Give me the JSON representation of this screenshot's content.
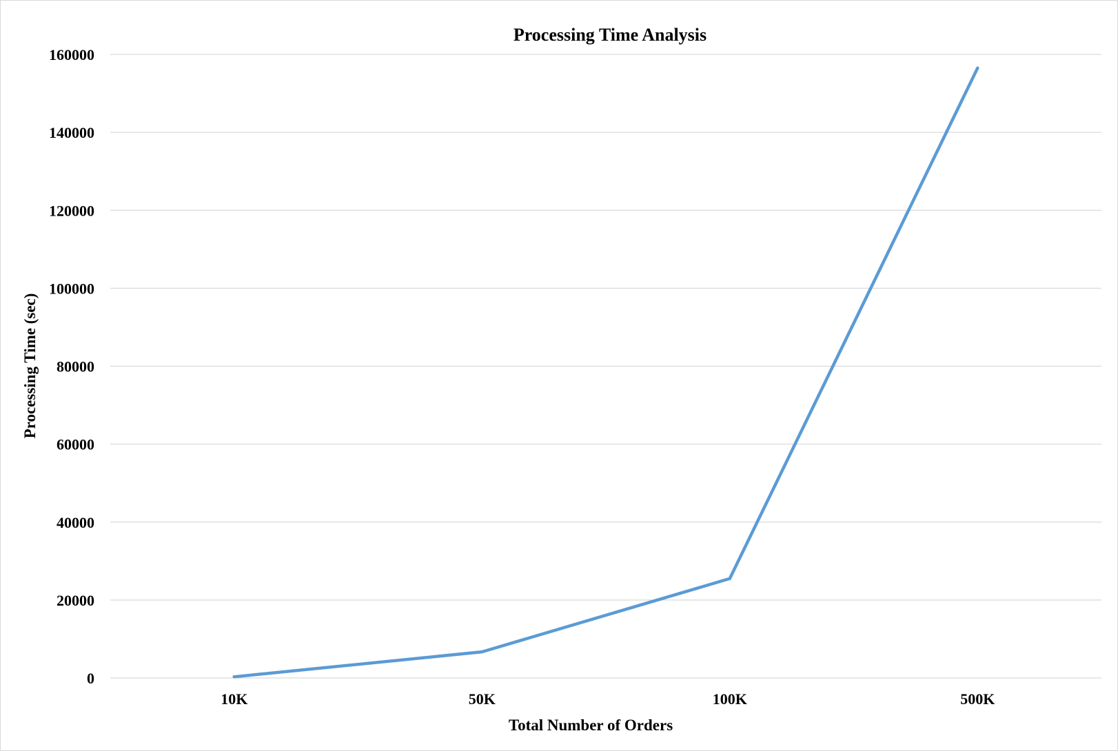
{
  "chart_data": {
    "type": "line",
    "title": "Processing Time Analysis",
    "xlabel": "Total Number of Orders",
    "ylabel": "Processing Time (sec)",
    "categories": [
      "10K",
      "50K",
      "100K",
      "500K"
    ],
    "series": [
      {
        "values": [
          300,
          6700,
          25500,
          156500
        ]
      }
    ],
    "ylim": [
      0,
      160000
    ],
    "yticks": [
      0,
      20000,
      40000,
      60000,
      80000,
      100000,
      120000,
      140000,
      160000
    ],
    "ytick_labels": [
      "0",
      "20000",
      "40000",
      "60000",
      "80000",
      "100000",
      "120000",
      "140000",
      "160000"
    ],
    "grid": true,
    "legend": "none",
    "colors": {
      "series": "#5b9bd5",
      "grid": "#d9d9d9"
    }
  }
}
